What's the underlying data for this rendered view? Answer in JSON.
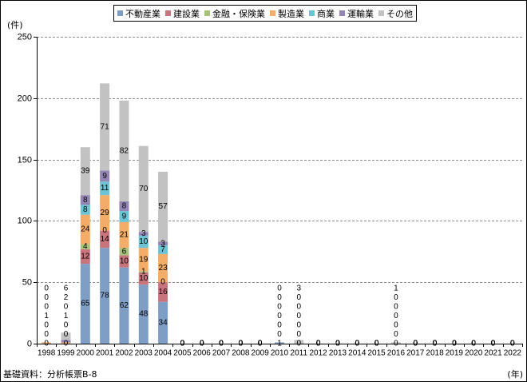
{
  "chart_data": {
    "type": "bar",
    "stacked": true,
    "xlabel": "(年)",
    "ylabel": "(件)",
    "ylim": [
      0,
      250
    ],
    "yticks": [
      0,
      50,
      100,
      150,
      200,
      250
    ],
    "grid": true,
    "legend_position": "top",
    "categories": [
      "1998",
      "1999",
      "2000",
      "2001",
      "2002",
      "2003",
      "2004",
      "2005",
      "2006",
      "2007",
      "2008",
      "2009",
      "2010",
      "2011",
      "2012",
      "2013",
      "2014",
      "2015",
      "2016",
      "2017",
      "2018",
      "2019",
      "2020",
      "2021",
      "2022"
    ],
    "series": [
      {
        "name": "不動産業",
        "color": "#7f9ec6",
        "values": [
          0,
          0,
          65,
          78,
          62,
          48,
          34,
          0,
          0,
          0,
          0,
          0,
          1,
          0,
          0,
          0,
          0,
          0,
          0,
          0,
          0,
          0,
          0,
          0,
          0
        ]
      },
      {
        "name": "建設業",
        "color": "#c8747c",
        "values": [
          0,
          0,
          12,
          14,
          10,
          10,
          16,
          0,
          0,
          0,
          0,
          0,
          0,
          0,
          0,
          0,
          0,
          0,
          0,
          0,
          0,
          0,
          0,
          0,
          0
        ]
      },
      {
        "name": "金融・保険業",
        "color": "#a6c27b",
        "values": [
          0,
          0,
          4,
          0,
          6,
          1,
          0,
          0,
          0,
          0,
          0,
          0,
          0,
          0,
          0,
          0,
          0,
          0,
          0,
          0,
          0,
          0,
          0,
          0,
          0
        ]
      },
      {
        "name": "製造業",
        "color": "#f4ad69",
        "values": [
          1,
          1,
          24,
          29,
          21,
          19,
          23,
          0,
          0,
          0,
          0,
          0,
          0,
          0,
          0,
          0,
          0,
          0,
          0,
          0,
          0,
          0,
          0,
          0,
          0
        ]
      },
      {
        "name": "商業",
        "color": "#6cc3d4",
        "values": [
          0,
          0,
          8,
          11,
          9,
          10,
          7,
          0,
          0,
          0,
          0,
          0,
          0,
          0,
          0,
          0,
          0,
          0,
          0,
          0,
          0,
          0,
          0,
          0,
          0
        ]
      },
      {
        "name": "運輸業",
        "color": "#9585b7",
        "values": [
          0,
          2,
          8,
          9,
          8,
          3,
          3,
          0,
          0,
          0,
          0,
          0,
          0,
          0,
          0,
          0,
          0,
          0,
          0,
          0,
          0,
          0,
          0,
          0,
          0
        ]
      },
      {
        "name": "その他",
        "color": "#c2c2c2",
        "values": [
          0,
          6,
          39,
          71,
          82,
          70,
          57,
          0,
          0,
          0,
          0,
          0,
          0,
          3,
          0,
          0,
          0,
          0,
          1,
          0,
          0,
          0,
          0,
          0,
          0
        ]
      }
    ]
  },
  "source_note": "基礎資料：分析帳票B-8"
}
